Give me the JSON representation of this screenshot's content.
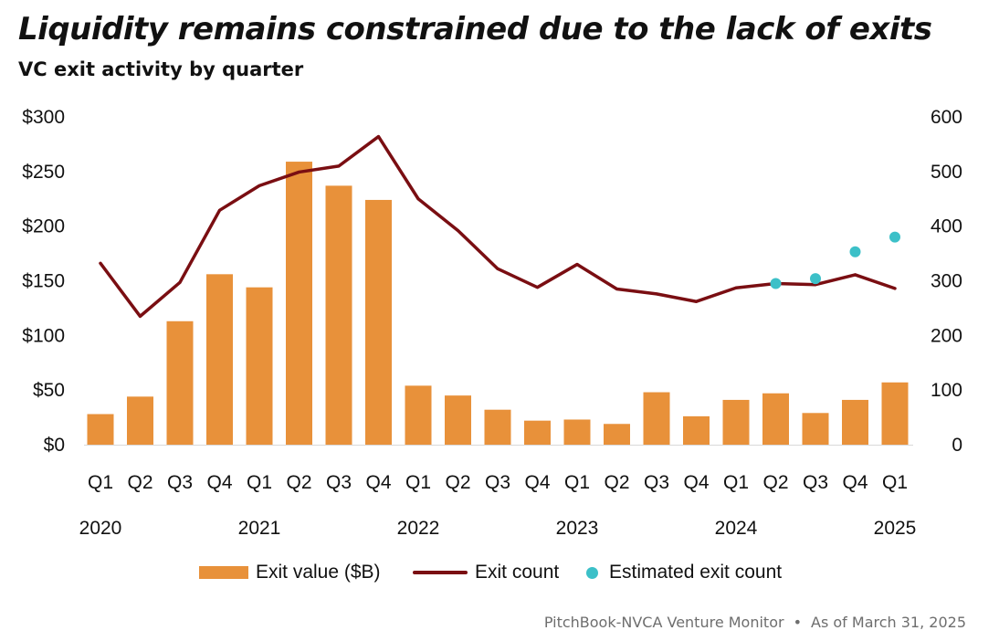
{
  "header": {
    "title": "Liquidity remains constrained due to the lack of exits",
    "subtitle": "VC exit activity by quarter"
  },
  "legend": {
    "bar_label": "Exit value ($B)",
    "line_label": "Exit count",
    "dot_label": "Estimated exit count"
  },
  "footer": {
    "source": "PitchBook-NVCA Venture Monitor",
    "separator": "•",
    "as_of": "As of March 31, 2025"
  },
  "colors": {
    "bar": "#E8913A",
    "line": "#7A0E12",
    "dot": "#3CC0C8"
  },
  "chart_data": {
    "type": "bar",
    "categories": [
      "Q1",
      "Q2",
      "Q3",
      "Q4",
      "Q1",
      "Q2",
      "Q3",
      "Q4",
      "Q1",
      "Q2",
      "Q3",
      "Q4",
      "Q1",
      "Q2",
      "Q3",
      "Q4",
      "Q1",
      "Q2",
      "Q3",
      "Q4",
      "Q1"
    ],
    "year_labels": [
      {
        "index": 0,
        "label": "2020"
      },
      {
        "index": 4,
        "label": "2021"
      },
      {
        "index": 8,
        "label": "2022"
      },
      {
        "index": 12,
        "label": "2023"
      },
      {
        "index": 16,
        "label": "2024"
      },
      {
        "index": 20,
        "label": "2025"
      }
    ],
    "series": [
      {
        "name": "Exit value ($B)",
        "kind": "bar",
        "axis": "left",
        "values": [
          28,
          44,
          113,
          156,
          144,
          259,
          237,
          224,
          54,
          45,
          32,
          22,
          23,
          19,
          48,
          26,
          41,
          47,
          29,
          41,
          57
        ]
      },
      {
        "name": "Exit count",
        "kind": "line",
        "axis": "right",
        "values": [
          332,
          235,
          297,
          429,
          474,
          499,
          510,
          564,
          450,
          392,
          322,
          288,
          330,
          285,
          276,
          262,
          287,
          295,
          293,
          311,
          286
        ]
      },
      {
        "name": "Estimated exit count",
        "kind": "scatter",
        "axis": "right",
        "points": [
          [
            17,
            295
          ],
          [
            18,
            304
          ],
          [
            19,
            353
          ],
          [
            20,
            380
          ]
        ]
      }
    ],
    "left_axis": {
      "min": 0,
      "max": 300,
      "ticks": [
        0,
        50,
        100,
        150,
        200,
        250,
        300
      ],
      "tick_labels": [
        "$0",
        "$50",
        "$100",
        "$150",
        "$200",
        "$250",
        "$300"
      ]
    },
    "right_axis": {
      "min": 0,
      "max": 600,
      "ticks": [
        0,
        100,
        200,
        300,
        400,
        500,
        600
      ],
      "tick_labels": [
        "0",
        "100",
        "200",
        "300",
        "400",
        "500",
        "600"
      ]
    },
    "grid": false,
    "legend_position": "bottom"
  }
}
